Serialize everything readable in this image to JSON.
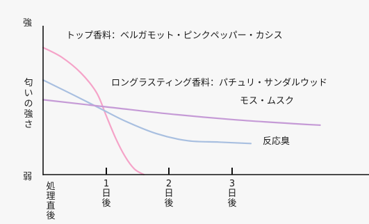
{
  "chart_data": {
    "type": "line",
    "y_axis": {
      "top_label": "強",
      "bottom_label": "弱",
      "title": "匂いの強さ"
    },
    "x_axis": {
      "tick_labels": [
        "処理直後",
        "1日後",
        "2日後",
        "3日後"
      ],
      "x_range": [
        0,
        5
      ]
    },
    "y_range": [
      0,
      100
    ],
    "grid": false,
    "series": [
      {
        "name": "トップ香料：ベルガモット・ピンクペッパー・カシス",
        "color": "#f5a3c8",
        "x": [
          0,
          0.3,
          0.6,
          0.85,
          1.0,
          1.15,
          1.3,
          1.45,
          1.6
        ],
        "y": [
          90,
          83,
          72,
          58,
          42,
          26,
          13,
          4,
          0
        ]
      },
      {
        "name": "反応臭",
        "color": "#a8bfe0",
        "x": [
          0,
          0.5,
          0.9,
          1.3,
          1.8,
          2.3,
          2.8,
          3.3
        ],
        "y": [
          67,
          56,
          47,
          38,
          29,
          24,
          23,
          22
        ]
      },
      {
        "name": "ロングラスティング香料：パチュリ・サンダルウッド モス・ムスク",
        "color": "#c59ad6",
        "x": [
          0,
          1,
          2,
          3,
          4,
          4.4
        ],
        "y": [
          53,
          48,
          43,
          39,
          36,
          35
        ]
      }
    ],
    "annotations": {
      "top": "トップ香料：ベルガモット・ピンクペッパー・カシス",
      "long_line1": "ロングラスティング香料：パチュリ・サンダルウッド",
      "long_line2": "モス・ムスク",
      "reaction": "反応臭"
    }
  }
}
